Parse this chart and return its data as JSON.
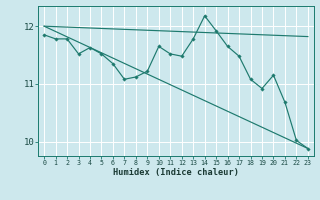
{
  "bg_color": "#cde8ed",
  "grid_color": "#ffffff",
  "line_color": "#1e7a6e",
  "xlabel": "Humidex (Indice chaleur)",
  "xlim": [
    -0.5,
    23.5
  ],
  "ylim": [
    9.75,
    12.35
  ],
  "yticks": [
    10,
    11,
    12
  ],
  "xticks": [
    0,
    1,
    2,
    3,
    4,
    5,
    6,
    7,
    8,
    9,
    10,
    11,
    12,
    13,
    14,
    15,
    16,
    17,
    18,
    19,
    20,
    21,
    22,
    23
  ],
  "line_straight_top": {
    "x": [
      0,
      23
    ],
    "y": [
      12.0,
      11.82
    ]
  },
  "line_straight_bottom": {
    "x": [
      0,
      23
    ],
    "y": [
      12.0,
      9.88
    ]
  },
  "line_wiggly": {
    "x": [
      0,
      1,
      2,
      3,
      4,
      5,
      6,
      7,
      8,
      9,
      10,
      11,
      12,
      13,
      14,
      15,
      16,
      17,
      18,
      19,
      20,
      21,
      22,
      23
    ],
    "y": [
      11.85,
      11.78,
      11.78,
      11.52,
      11.63,
      11.52,
      11.35,
      11.08,
      11.12,
      11.22,
      11.65,
      11.52,
      11.48,
      11.78,
      12.18,
      11.92,
      11.65,
      11.48,
      11.08,
      10.92,
      11.15,
      10.68,
      10.02,
      9.88
    ]
  }
}
